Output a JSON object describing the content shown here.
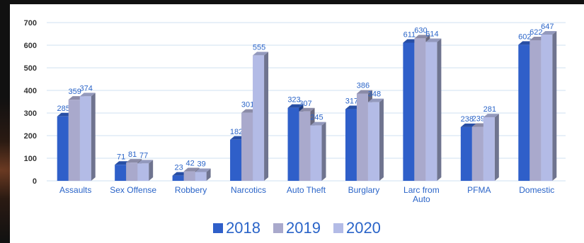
{
  "chart_data": {
    "type": "bar",
    "title": "",
    "xlabel": "",
    "ylabel": "",
    "ylim": [
      0,
      700
    ],
    "yticks": [
      0,
      100,
      200,
      300,
      400,
      500,
      600,
      700
    ],
    "grid": true,
    "legend_position": "bottom",
    "categories": [
      "Assaults",
      "Sex Offense",
      "Robbery",
      "Narcotics",
      "Auto Theft",
      "Burglary",
      "Larc from Auto",
      "PFMA",
      "Domestic"
    ],
    "series": [
      {
        "name": "2018",
        "color": "#2f5fc9",
        "values": [
          285,
          71,
          23,
          182,
          323,
          317,
          611,
          238,
          602
        ]
      },
      {
        "name": "2019",
        "color": "#a9a9cc",
        "values": [
          359,
          81,
          42,
          301,
          307,
          386,
          630,
          239,
          622
        ]
      },
      {
        "name": "2020",
        "color": "#b3bbe6",
        "values": [
          374,
          77,
          39,
          555,
          245,
          348,
          614,
          281,
          647
        ]
      }
    ]
  }
}
